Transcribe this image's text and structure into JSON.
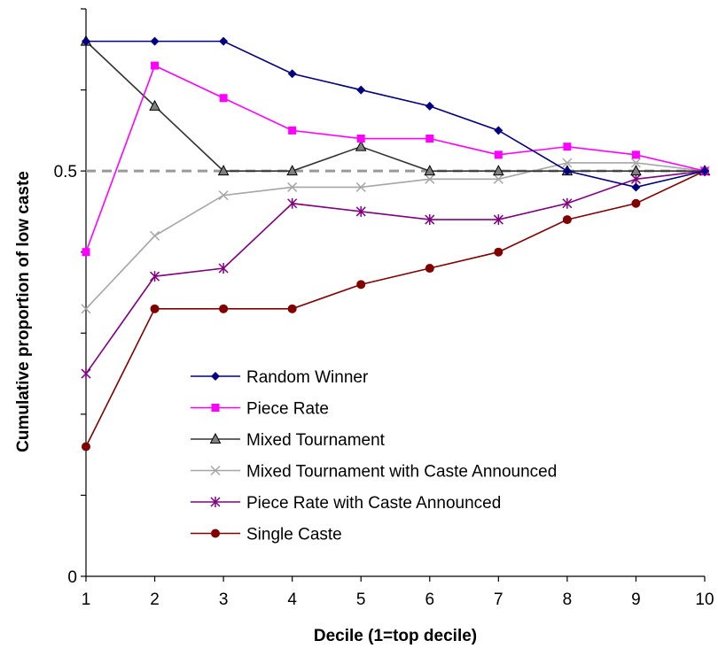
{
  "chart_data": {
    "type": "line",
    "xlabel": "Decile (1=top decile)",
    "ylabel": "Cumulative proportion of low caste",
    "x": [
      1,
      2,
      3,
      4,
      5,
      6,
      7,
      8,
      9,
      10
    ],
    "xlim": [
      1,
      10
    ],
    "ylim": [
      0,
      0.7
    ],
    "yticks": [
      0,
      0.5
    ],
    "ytick_labels": [
      "0",
      "0.5"
    ],
    "reference_line": {
      "y": 0.5,
      "style": "dashed",
      "color": "#999999"
    },
    "legend_position": "lower-center",
    "series": [
      {
        "name": "Random Winner",
        "color": "#000080",
        "marker": "diamond",
        "values": [
          0.66,
          0.66,
          0.66,
          0.62,
          0.6,
          0.58,
          0.55,
          0.5,
          0.48,
          0.5
        ]
      },
      {
        "name": "Piece Rate",
        "color": "#ff00ff",
        "marker": "square",
        "values": [
          0.4,
          0.63,
          0.59,
          0.55,
          0.54,
          0.54,
          0.52,
          0.53,
          0.52,
          0.5
        ]
      },
      {
        "name": "Mixed Tournament",
        "color": "#333333",
        "marker": "triangle",
        "values": [
          0.66,
          0.58,
          0.5,
          0.5,
          0.53,
          0.5,
          0.5,
          0.5,
          0.5,
          0.5
        ]
      },
      {
        "name": "Mixed Tournament with Caste Announced",
        "color": "#a6a6a6",
        "marker": "x",
        "values": [
          0.33,
          0.42,
          0.47,
          0.48,
          0.48,
          0.49,
          0.49,
          0.51,
          0.51,
          0.5
        ]
      },
      {
        "name": "Piece Rate with Caste Announced",
        "color": "#800080",
        "marker": "star",
        "values": [
          0.25,
          0.37,
          0.38,
          0.46,
          0.45,
          0.44,
          0.44,
          0.46,
          0.49,
          0.5
        ]
      },
      {
        "name": "Single Caste",
        "color": "#800000",
        "marker": "circle",
        "values": [
          0.16,
          0.33,
          0.33,
          0.33,
          0.36,
          0.38,
          0.4,
          0.44,
          0.46,
          0.5
        ]
      }
    ]
  }
}
